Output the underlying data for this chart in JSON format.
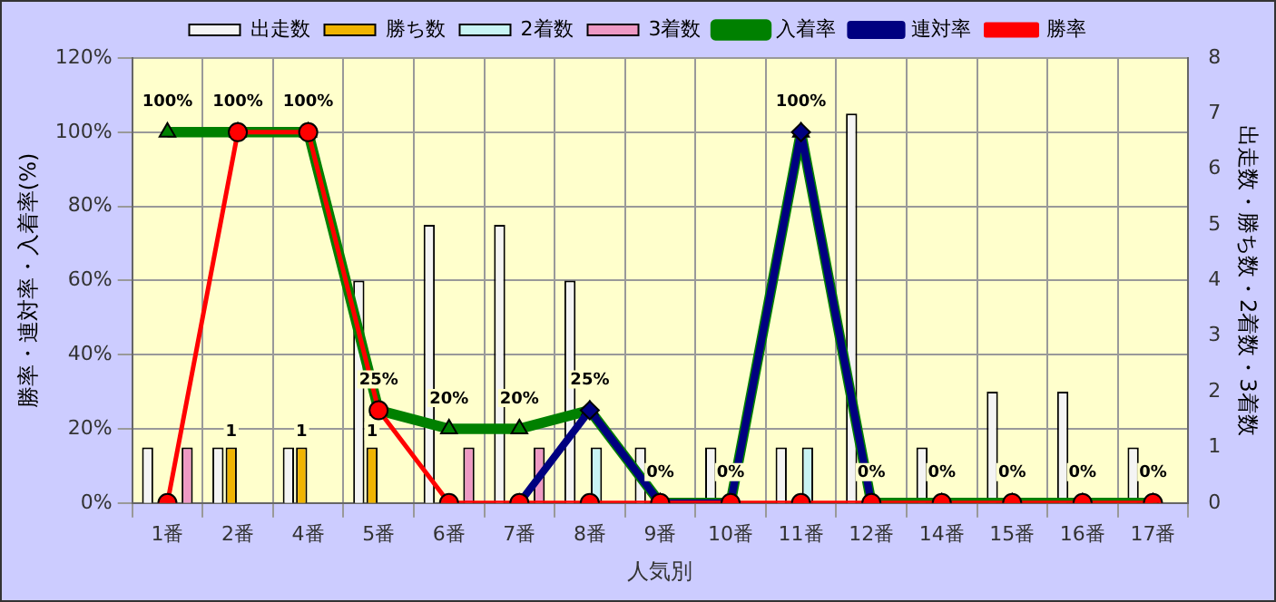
{
  "chart_data": {
    "type": "bar",
    "categories": [
      "1番",
      "2番",
      "4番",
      "5番",
      "6番",
      "7番",
      "8番",
      "9番",
      "10番",
      "11番",
      "12番",
      "14番",
      "15番",
      "16番",
      "17番"
    ],
    "xlabel": "人気別",
    "ylabel": "勝率・連対率・入着率(%)",
    "y2label": "出走数・勝ち数・2着数・3着数",
    "ylim": [
      0,
      120
    ],
    "yticks": [
      {
        "value": 0,
        "label": "0%"
      },
      {
        "value": 20,
        "label": "20%"
      },
      {
        "value": 40,
        "label": "40%"
      },
      {
        "value": 60,
        "label": "60%"
      },
      {
        "value": 80,
        "label": "80%"
      },
      {
        "value": 100,
        "label": "100%"
      },
      {
        "value": 120,
        "label": "120%"
      }
    ],
    "y2lim": [
      0,
      8
    ],
    "y2ticks": [
      0,
      1,
      2,
      3,
      4,
      5,
      6,
      7,
      8
    ],
    "grid": true,
    "legend": "top",
    "series": [
      {
        "name": "出走数",
        "axis": "y2",
        "color": "#f4f4f4",
        "values": [
          1,
          1,
          1,
          4,
          5,
          5,
          4,
          1,
          1,
          1,
          7,
          1,
          2,
          2,
          1
        ]
      },
      {
        "name": "勝ち数",
        "axis": "y2",
        "color": "#f0b400",
        "values": [
          0,
          1,
          1,
          1,
          0,
          0,
          0,
          0,
          0,
          0,
          0,
          0,
          0,
          0,
          0
        ],
        "value_labels": [
          null,
          "1",
          "1",
          "1",
          null,
          null,
          null,
          null,
          null,
          null,
          null,
          null,
          null,
          null,
          null
        ]
      },
      {
        "name": "2着数",
        "axis": "y2",
        "color": "#c8f4f4",
        "values": [
          0,
          0,
          0,
          0,
          0,
          0,
          1,
          0,
          0,
          1,
          0,
          0,
          0,
          0,
          0
        ]
      },
      {
        "name": "3着数",
        "axis": "y2",
        "color": "#ee99c4",
        "values": [
          1,
          0,
          0,
          0,
          1,
          1,
          0,
          0,
          0,
          0,
          0,
          0,
          0,
          0,
          0
        ]
      },
      {
        "name": "入着率",
        "type": "line",
        "color": "#008000",
        "marker": "triangle",
        "values": [
          100,
          100,
          100,
          25,
          20,
          20,
          25,
          0,
          0,
          100,
          0,
          0,
          0,
          0,
          0
        ],
        "value_labels": [
          "100%",
          "100%",
          "100%",
          "25%",
          "20%",
          "20%",
          "25%",
          "0%",
          "0%",
          "100%",
          "0%",
          "0%",
          "0%",
          "0%",
          "0%"
        ]
      },
      {
        "name": "連対率",
        "type": "line",
        "color": "#000080",
        "marker": "diamond",
        "values": [
          null,
          null,
          null,
          null,
          null,
          0,
          25,
          0,
          0,
          100,
          0,
          null,
          null,
          null,
          null
        ]
      },
      {
        "name": "勝率",
        "type": "line",
        "color": "#ff0000",
        "marker": "circle",
        "values": [
          0,
          100,
          100,
          25,
          0,
          0,
          0,
          0,
          0,
          0,
          0,
          0,
          0,
          0,
          0
        ]
      }
    ]
  }
}
